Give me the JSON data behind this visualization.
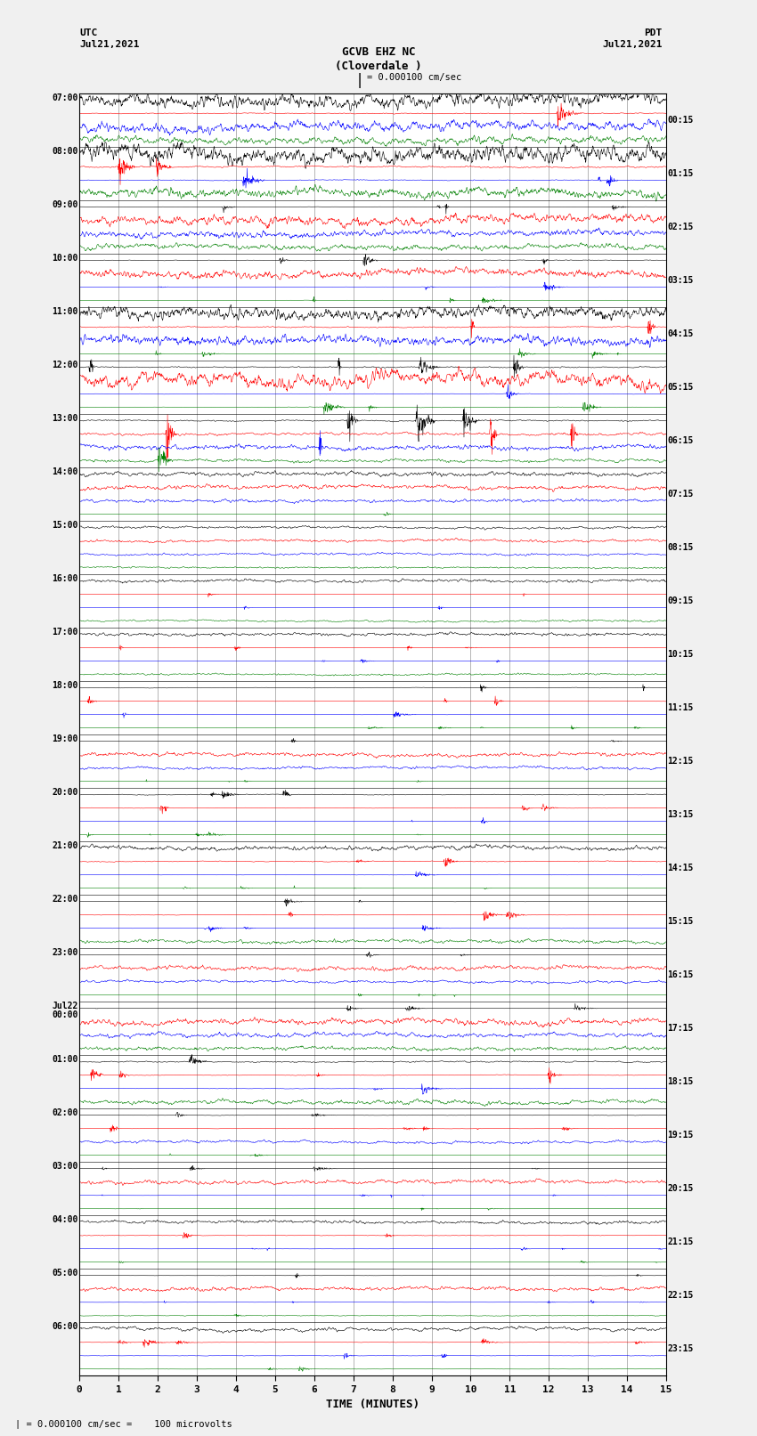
{
  "title_line1": "GCVB EHZ NC",
  "title_line2": "(Cloverdale )",
  "scale_label": "= 0.000100 cm/sec",
  "bottom_label": "= 0.000100 cm/sec =    100 microvolts",
  "xlabel": "TIME (MINUTES)",
  "left_header_line1": "UTC",
  "left_header_line2": "Jul21,2021",
  "right_header_line1": "PDT",
  "right_header_line2": "Jul21,2021",
  "left_times": [
    "07:00",
    "08:00",
    "09:00",
    "10:00",
    "11:00",
    "12:00",
    "13:00",
    "14:00",
    "15:00",
    "16:00",
    "17:00",
    "18:00",
    "19:00",
    "20:00",
    "21:00",
    "22:00",
    "23:00",
    "Jul22\n00:00",
    "01:00",
    "02:00",
    "03:00",
    "04:00",
    "05:00",
    "06:00"
  ],
  "right_times": [
    "00:15",
    "01:15",
    "02:15",
    "03:15",
    "04:15",
    "05:15",
    "06:15",
    "07:15",
    "08:15",
    "09:15",
    "10:15",
    "11:15",
    "12:15",
    "13:15",
    "14:15",
    "15:15",
    "16:15",
    "17:15",
    "18:15",
    "19:15",
    "20:15",
    "21:15",
    "22:15",
    "23:15"
  ],
  "n_rows": 24,
  "traces_per_row": 4,
  "colors": [
    "black",
    "red",
    "blue",
    "green"
  ],
  "bg_color": "#f0f0f0",
  "plot_bg": "white",
  "grid_color": "#aaaaaa",
  "row_sep_color": "black",
  "xmin": 0,
  "xmax": 15,
  "n_points": 1800,
  "fig_width": 8.5,
  "fig_height": 16.13,
  "dpi": 100,
  "row_amplitudes": [
    1.8,
    2.5,
    1.2,
    1.0,
    1.5,
    2.0,
    3.5,
    0.6,
    0.4,
    0.4,
    0.4,
    0.7,
    0.5,
    0.8,
    0.7,
    0.8,
    0.5,
    0.8,
    1.2,
    0.5,
    0.5,
    0.4,
    0.4,
    0.7
  ],
  "trace_amplitudes": [
    1.0,
    1.2,
    0.8,
    0.6
  ]
}
